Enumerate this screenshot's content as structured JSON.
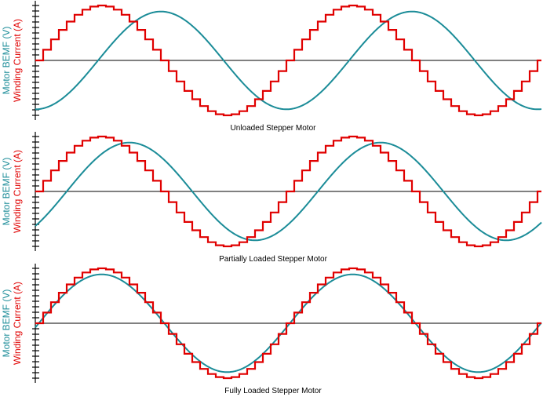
{
  "colors": {
    "current": "#e00000",
    "bemf": "#1b8c98",
    "axis": "#000000"
  },
  "chart_data": [
    {
      "type": "line",
      "title": "Unloaded Stepper Motor",
      "ylabels": [
        "Motor BEMF (V)",
        "Winding Current (A)"
      ],
      "cycles": 2,
      "microsteps_per_half_cycle": 16,
      "grid": false,
      "series": [
        {
          "name": "Winding Current (A)",
          "shape": "stepped-sine",
          "amplitude": 1.0,
          "phase_lag_deg": 0
        },
        {
          "name": "Motor BEMF (V)",
          "shape": "sine",
          "amplitude": 0.89,
          "phase_lag_deg": 90
        }
      ]
    },
    {
      "type": "line",
      "title": "Partially Loaded Stepper Motor",
      "ylabels": [
        "Motor BEMF (V)",
        "Winding Current (A)"
      ],
      "cycles": 2,
      "microsteps_per_half_cycle": 16,
      "grid": false,
      "series": [
        {
          "name": "Winding Current (A)",
          "shape": "stepped-sine",
          "amplitude": 1.0,
          "phase_lag_deg": 0
        },
        {
          "name": "Motor BEMF (V)",
          "shape": "sine",
          "amplitude": 0.89,
          "phase_lag_deg": 45
        }
      ]
    },
    {
      "type": "line",
      "title": "Fully Loaded Stepper Motor",
      "ylabels": [
        "Motor BEMF (V)",
        "Winding Current (A)"
      ],
      "cycles": 2,
      "microsteps_per_half_cycle": 16,
      "grid": false,
      "series": [
        {
          "name": "Winding Current (A)",
          "shape": "stepped-sine",
          "amplitude": 1.0,
          "phase_lag_deg": 0
        },
        {
          "name": "Motor BEMF (V)",
          "shape": "sine",
          "amplitude": 0.89,
          "phase_lag_deg": 5
        }
      ]
    }
  ]
}
